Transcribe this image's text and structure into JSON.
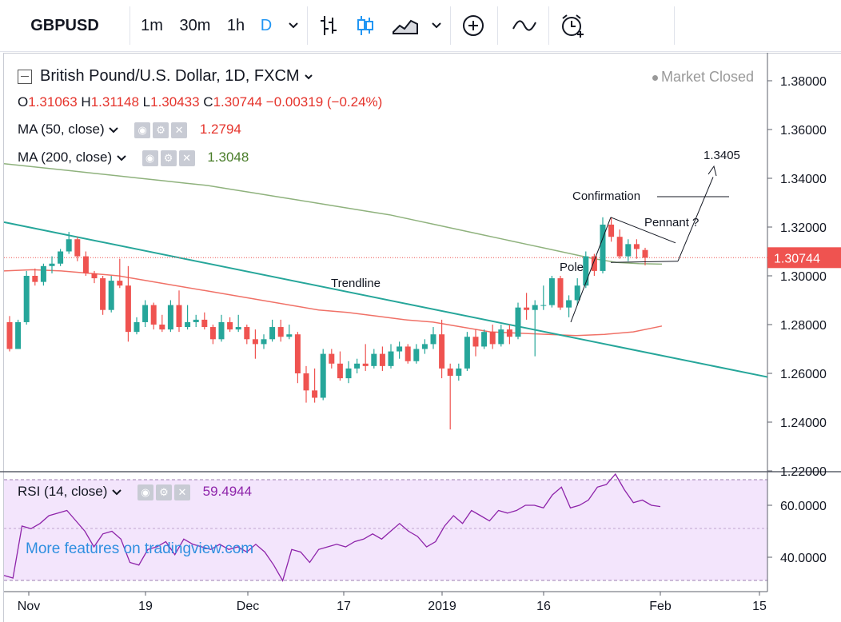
{
  "toolbar": {
    "symbol": "GBPUSD",
    "intervals": [
      "1m",
      "30m",
      "1h",
      "D"
    ]
  },
  "header": {
    "instrument": "British Pound/U.S. Dollar, 1D, FXCM",
    "status": "Market Closed",
    "ohlc": {
      "open_label": "O",
      "open": "1.31063",
      "high_label": "H",
      "high": "1.31148",
      "low_label": "L",
      "low": "1.30433",
      "close_label": "C",
      "close": "1.30744",
      "change": "−0.00319 (−0.24%)"
    },
    "ma50": {
      "label": "MA (50, close)",
      "value": "1.2794"
    },
    "ma200": {
      "label": "MA (200, close)",
      "value": "1.3048"
    },
    "rsi": {
      "label": "RSI (14, close)",
      "value": "59.4944"
    }
  },
  "watermark": "More features on tradingview.com",
  "colors": {
    "up": "#26a69a",
    "down": "#ef5350",
    "ma50": "#f07167",
    "ma200": "#8fb27d",
    "trend": "#26a69a",
    "rsi": "#8e24aa",
    "rsi_bg": "#f3e5fc"
  },
  "chart_data": {
    "type": "candlestick",
    "price_axis": {
      "ticks": [
        "1.38000",
        "1.36000",
        "1.34000",
        "1.32000",
        "1.30000",
        "1.28000",
        "1.26000",
        "1.24000",
        "1.22000"
      ],
      "range": [
        1.2186,
        1.3905
      ]
    },
    "time_axis": {
      "ticks": [
        "Nov",
        "19",
        "Dec",
        "17",
        "2019",
        "16",
        "Feb",
        "15"
      ]
    },
    "last_price": "1.30744",
    "candles": [
      [
        1.281,
        1.2835,
        1.269,
        1.27
      ],
      [
        1.27,
        1.282,
        1.27,
        1.281
      ],
      [
        1.281,
        1.302,
        1.28,
        1.3
      ],
      [
        1.3,
        1.303,
        1.296,
        1.2975
      ],
      [
        1.2975,
        1.305,
        1.296,
        1.304
      ],
      [
        1.304,
        1.308,
        1.301,
        1.305
      ],
      [
        1.305,
        1.311,
        1.304,
        1.31
      ],
      [
        1.31,
        1.318,
        1.309,
        1.315
      ],
      [
        1.315,
        1.316,
        1.306,
        1.308
      ],
      [
        1.308,
        1.31,
        1.3,
        1.301
      ],
      [
        1.301,
        1.302,
        1.297,
        1.299
      ],
      [
        1.299,
        1.3,
        1.284,
        1.286
      ],
      [
        1.286,
        1.3,
        1.285,
        1.298
      ],
      [
        1.298,
        1.307,
        1.295,
        1.296
      ],
      [
        1.296,
        1.304,
        1.273,
        1.277
      ],
      [
        1.277,
        1.283,
        1.276,
        1.281
      ],
      [
        1.281,
        1.29,
        1.279,
        1.288
      ],
      [
        1.288,
        1.289,
        1.278,
        1.28
      ],
      [
        1.28,
        1.284,
        1.277,
        1.278
      ],
      [
        1.278,
        1.29,
        1.277,
        1.288
      ],
      [
        1.288,
        1.294,
        1.277,
        1.279
      ],
      [
        1.279,
        1.288,
        1.278,
        1.281
      ],
      [
        1.281,
        1.284,
        1.279,
        1.282
      ],
      [
        1.282,
        1.285,
        1.278,
        1.279
      ],
      [
        1.279,
        1.28,
        1.272,
        1.274
      ],
      [
        1.274,
        1.284,
        1.273,
        1.281
      ],
      [
        1.281,
        1.283,
        1.277,
        1.278
      ],
      [
        1.278,
        1.284,
        1.277,
        1.279
      ],
      [
        1.279,
        1.28,
        1.272,
        1.274
      ],
      [
        1.274,
        1.278,
        1.266,
        1.272
      ],
      [
        1.272,
        1.276,
        1.27,
        1.274
      ],
      [
        1.274,
        1.282,
        1.273,
        1.279
      ],
      [
        1.279,
        1.282,
        1.273,
        1.275
      ],
      [
        1.275,
        1.28,
        1.274,
        1.276
      ],
      [
        1.276,
        1.277,
        1.256,
        1.26
      ],
      [
        1.26,
        1.263,
        1.248,
        1.253
      ],
      [
        1.253,
        1.262,
        1.248,
        1.25
      ],
      [
        1.25,
        1.27,
        1.249,
        1.268
      ],
      [
        1.268,
        1.27,
        1.262,
        1.264
      ],
      [
        1.264,
        1.269,
        1.257,
        1.258
      ],
      [
        1.258,
        1.265,
        1.256,
        1.262
      ],
      [
        1.262,
        1.266,
        1.26,
        1.264
      ],
      [
        1.264,
        1.272,
        1.261,
        1.263
      ],
      [
        1.263,
        1.27,
        1.262,
        1.268
      ],
      [
        1.268,
        1.271,
        1.261,
        1.263
      ],
      [
        1.263,
        1.272,
        1.262,
        1.269
      ],
      [
        1.269,
        1.273,
        1.266,
        1.271
      ],
      [
        1.271,
        1.272,
        1.264,
        1.265
      ],
      [
        1.265,
        1.272,
        1.264,
        1.27
      ],
      [
        1.27,
        1.274,
        1.268,
        1.272
      ],
      [
        1.272,
        1.279,
        1.27,
        1.276
      ],
      [
        1.276,
        1.282,
        1.258,
        1.262
      ],
      [
        1.262,
        1.264,
        1.237,
        1.259
      ],
      [
        1.259,
        1.264,
        1.257,
        1.262
      ],
      [
        1.262,
        1.277,
        1.261,
        1.275
      ],
      [
        1.275,
        1.278,
        1.267,
        1.271
      ],
      [
        1.271,
        1.278,
        1.27,
        1.277
      ],
      [
        1.277,
        1.28,
        1.27,
        1.272
      ],
      [
        1.272,
        1.28,
        1.271,
        1.278
      ],
      [
        1.278,
        1.28,
        1.272,
        1.275
      ],
      [
        1.275,
        1.289,
        1.274,
        1.287
      ],
      [
        1.287,
        1.293,
        1.282,
        1.286
      ],
      [
        1.286,
        1.29,
        1.267,
        1.288
      ],
      [
        1.288,
        1.296,
        1.286,
        1.288
      ],
      [
        1.288,
        1.3,
        1.287,
        1.299
      ],
      [
        1.299,
        1.3,
        1.286,
        1.287
      ],
      [
        1.287,
        1.292,
        1.283,
        1.29
      ],
      [
        1.29,
        1.299,
        1.288,
        1.296
      ],
      [
        1.296,
        1.31,
        1.295,
        1.308
      ],
      [
        1.308,
        1.309,
        1.3,
        1.302
      ],
      [
        1.302,
        1.324,
        1.301,
        1.321
      ],
      [
        1.321,
        1.324,
        1.314,
        1.316
      ],
      [
        1.316,
        1.319,
        1.307,
        1.308
      ],
      [
        1.308,
        1.315,
        1.306,
        1.313
      ],
      [
        1.313,
        1.315,
        1.307,
        1.311
      ],
      [
        1.3106,
        1.3115,
        1.3043,
        1.3074
      ]
    ],
    "series": [
      {
        "name": "MA (200, close)",
        "values": [
          1.346,
          1.345,
          1.344,
          1.343,
          1.342,
          1.341,
          1.34,
          1.339,
          1.338,
          1.337,
          1.3355,
          1.334,
          1.3325,
          1.331,
          1.3295,
          1.328,
          1.3265,
          1.325,
          1.323,
          1.321,
          1.319,
          1.317,
          1.315,
          1.313,
          1.311,
          1.309,
          1.307,
          1.3055,
          1.305,
          1.3048
        ]
      },
      {
        "name": "MA (50, close)",
        "values": [
          1.302,
          1.3025,
          1.302,
          1.301,
          1.3,
          1.298,
          1.296,
          1.294,
          1.292,
          1.29,
          1.288,
          1.286,
          1.285,
          1.2835,
          1.282,
          1.281,
          1.279,
          1.277,
          1.2765,
          1.276,
          1.2755,
          1.276,
          1.277,
          1.2794
        ]
      },
      {
        "name": "Trendline",
        "values": [
          1.322,
          1.2585
        ]
      },
      {
        "name": "RSI (14, close)",
        "values": [
          33,
          32,
          52,
          51,
          53,
          56,
          57,
          58,
          54,
          50,
          44,
          49,
          50,
          47,
          38,
          37,
          43,
          44,
          46,
          41,
          47,
          45,
          44,
          43,
          45,
          43,
          44,
          42,
          45,
          42,
          37,
          31,
          43,
          42,
          38,
          43,
          44,
          45,
          44,
          46,
          47,
          49,
          47,
          50,
          53,
          50,
          48,
          44,
          46,
          52,
          56,
          53,
          58,
          56,
          54,
          58,
          57,
          58,
          60,
          60,
          59,
          64,
          67,
          59,
          60,
          62,
          67,
          68,
          72,
          66,
          61,
          62,
          60,
          59.4944
        ]
      },
      {
        "name": "Pole",
        "values": [
          1.281,
          1.324
        ]
      }
    ],
    "rsi_axis": {
      "ticks": [
        "60.0000",
        "40.0000"
      ],
      "range": [
        27,
        75
      ]
    },
    "annotations": [
      "1.3405",
      "Confirmation",
      "Pennant ?",
      "Pole",
      "Trendline"
    ]
  }
}
